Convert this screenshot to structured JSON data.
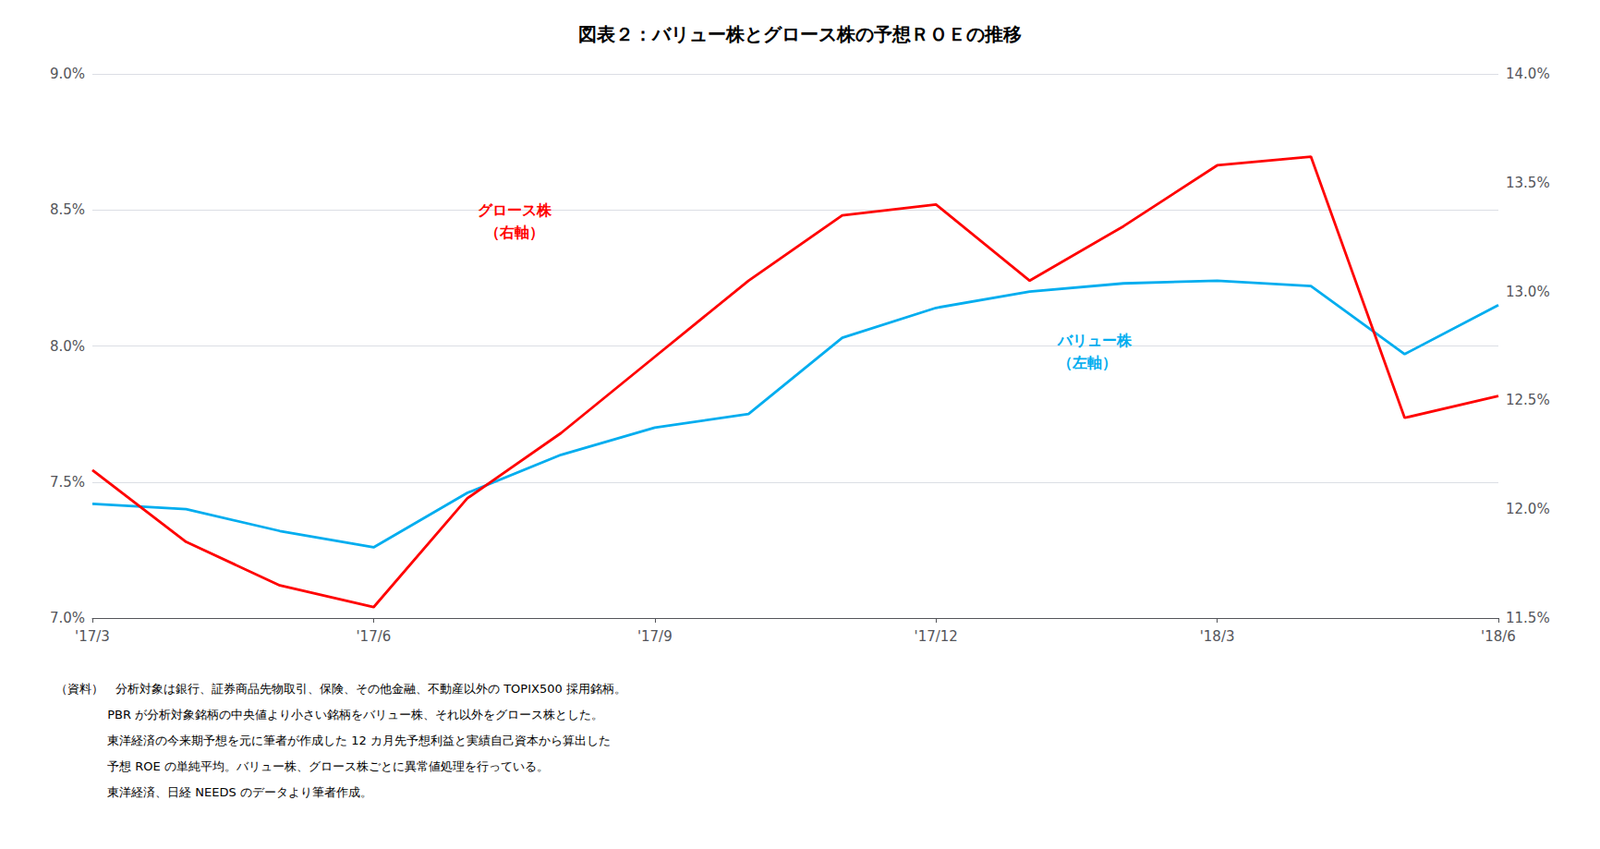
{
  "chart_data": {
    "type": "line",
    "title": "図表２：バリュー株とグロース株の予想ＲＯＥの推移",
    "categories": [
      "'17/3",
      null,
      null,
      "'17/6",
      null,
      null,
      "'17/9",
      null,
      null,
      "'17/12",
      null,
      null,
      "'18/3",
      null,
      null,
      "'18/6"
    ],
    "series": [
      {
        "name": "バリュー株\n（左軸）",
        "color": "#00ADEF",
        "values": [
          7.42,
          7.4,
          7.32,
          7.26,
          7.46,
          7.6,
          7.7,
          7.75,
          8.03,
          8.14,
          8.2,
          8.23,
          8.24,
          8.22,
          7.97,
          8.15
        ]
      },
      {
        "name": "グロース株\n（右軸）",
        "color": "#FF0000",
        "axis": "y2",
        "values": [
          12.18,
          11.85,
          11.65,
          11.55,
          12.05,
          12.35,
          12.7,
          13.05,
          13.35,
          13.4,
          13.05,
          13.3,
          13.58,
          13.62,
          12.42,
          12.52
        ]
      }
    ],
    "ylim": [
      7.0,
      9.0
    ],
    "yticks": [
      {
        "value": 7.0,
        "label": "7.0%"
      },
      {
        "value": 7.5,
        "label": "7.5%"
      },
      {
        "value": 8.0,
        "label": "8.0%"
      },
      {
        "value": 8.5,
        "label": "8.5%"
      },
      {
        "value": 9.0,
        "label": "9.0%"
      }
    ],
    "y2lim": [
      11.5,
      14.0
    ],
    "y2ticks": [
      {
        "value": 11.5,
        "label": "11.5%"
      },
      {
        "value": 12.0,
        "label": "12.0%"
      },
      {
        "value": 12.5,
        "label": "12.5%"
      },
      {
        "value": 13.0,
        "label": "13.0%"
      },
      {
        "value": 13.5,
        "label": "13.5%"
      },
      {
        "value": 14.0,
        "label": "14.0%"
      }
    ],
    "grid": true,
    "footnotes": [
      "（資料）　分析対象は銀行、証券商品先物取引、保険、その他金融、不動産以外の TOPIX500 採用銘柄。",
      "　　　　 PBR が分析対象銘柄の中央値より小さい銘柄をバリュー株、それ以外をグロース株とした。",
      "　　　　 東洋経済の今来期予想を元に筆者が作成した 12 カ月先予想利益と実績自己資本から算出した",
      "　　　　 予想 ROE の単純平均。バリュー株、グロース株ごとに異常値処理を行っている。",
      "　　　　 東洋経済、日経 NEEDS のデータより筆者作成。"
    ]
  }
}
